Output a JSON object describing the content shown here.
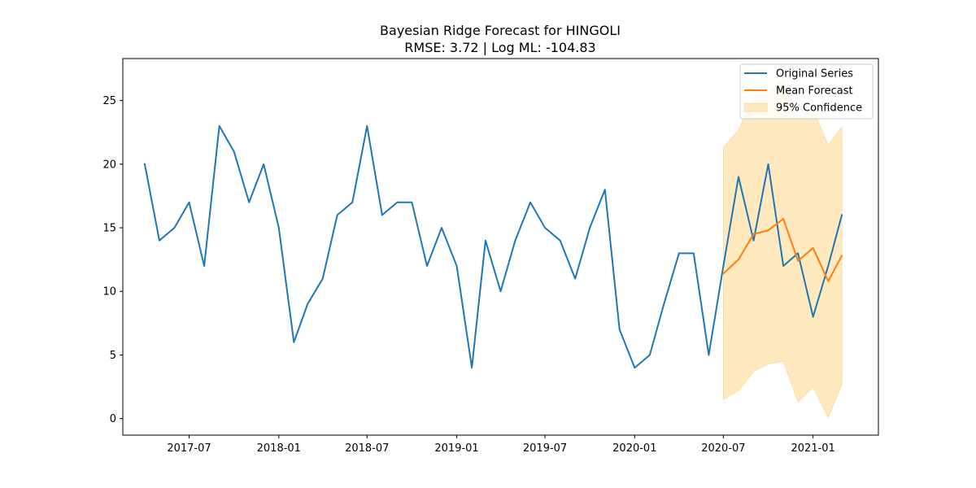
{
  "chart_data": {
    "type": "line",
    "title": "Bayesian Ridge Forecast for HINGOLI",
    "subtitle": "RMSE: 3.72 | Log ML: -104.83",
    "xlabel": "",
    "ylabel": "",
    "x_ticks": [
      "2017-07",
      "2018-01",
      "2018-07",
      "2019-01",
      "2019-07",
      "2020-01",
      "2020-07",
      "2021-01"
    ],
    "y_ticks": [
      0,
      5,
      10,
      15,
      20,
      25
    ],
    "xlim": [
      "2017-02-15",
      "2021-05-15"
    ],
    "ylim": [
      -1.3,
      28.3
    ],
    "grid": false,
    "legend_position": "top-right",
    "series": [
      {
        "name": "Original Series",
        "color": "#1f77b4",
        "x": [
          "2017-04",
          "2017-05",
          "2017-06",
          "2017-07",
          "2017-08",
          "2017-09",
          "2017-10",
          "2017-11",
          "2017-12",
          "2018-01",
          "2018-02",
          "2018-03",
          "2018-04",
          "2018-05",
          "2018-06",
          "2018-07",
          "2018-08",
          "2018-09",
          "2018-10",
          "2018-11",
          "2018-12",
          "2019-01",
          "2019-02",
          "2019-03",
          "2019-04",
          "2019-05",
          "2019-06",
          "2019-07",
          "2019-08",
          "2019-09",
          "2019-10",
          "2019-11",
          "2019-12",
          "2020-01",
          "2020-02",
          "2020-03",
          "2020-04",
          "2020-05",
          "2020-06",
          "2020-07",
          "2020-08",
          "2020-09",
          "2020-10",
          "2020-11",
          "2020-12",
          "2021-01",
          "2021-02",
          "2021-03"
        ],
        "values": [
          20,
          14,
          15,
          17,
          12,
          23,
          21,
          17,
          20,
          15,
          6,
          9,
          11,
          16,
          17,
          23,
          16,
          17,
          17,
          12,
          15,
          12,
          4,
          14,
          10,
          14,
          17,
          15,
          14,
          11,
          15,
          18,
          7,
          4,
          5,
          9,
          13,
          13,
          5,
          12,
          19,
          14,
          20,
          12,
          13,
          8,
          12,
          16
        ]
      },
      {
        "name": "Mean Forecast",
        "color": "#ff7f0e",
        "x": [
          "2020-07",
          "2020-08",
          "2020-09",
          "2020-10",
          "2020-11",
          "2020-12",
          "2021-01",
          "2021-02",
          "2021-03"
        ],
        "values": [
          11.4,
          12.5,
          14.5,
          14.8,
          15.7,
          12.4,
          13.4,
          10.8,
          12.8
        ]
      }
    ],
    "confidence_band": {
      "name": "95% Confidence",
      "color": "#ffe9bf",
      "x": [
        "2020-07",
        "2020-08",
        "2020-09",
        "2020-10",
        "2020-11",
        "2020-12",
        "2021-01",
        "2021-02",
        "2021-03"
      ],
      "lower": [
        1.5,
        2.2,
        3.7,
        4.3,
        4.5,
        1.3,
        2.5,
        0.1,
        2.7
      ],
      "upper": [
        21.3,
        22.7,
        25.2,
        25.5,
        26.8,
        23.5,
        24.3,
        21.5,
        22.9
      ]
    }
  }
}
